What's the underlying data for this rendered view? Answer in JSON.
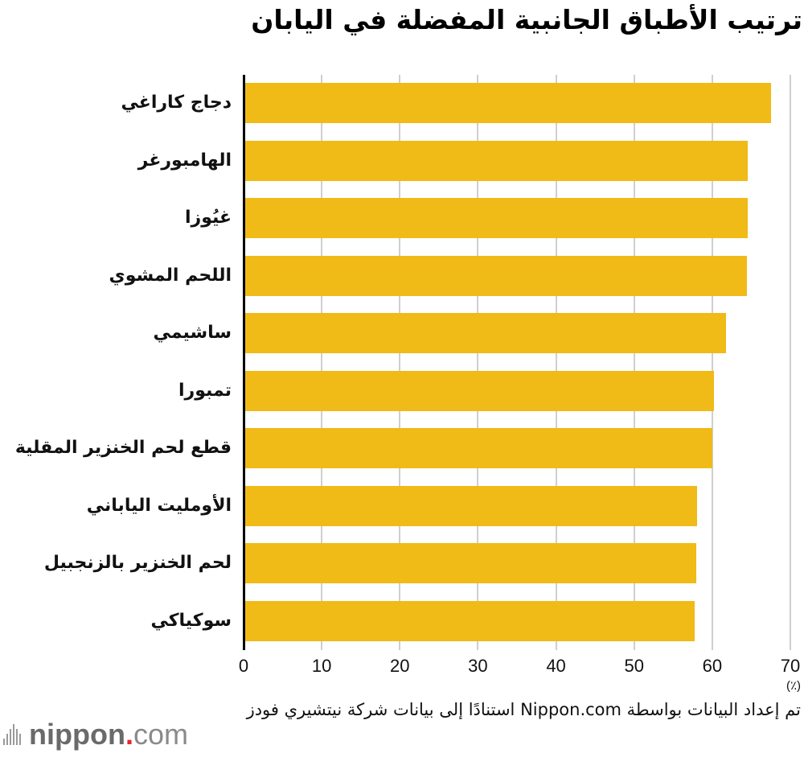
{
  "title": "ترتيب الأطباق الجانبية المفضلة في اليابان",
  "chart_data": {
    "type": "bar",
    "orientation": "horizontal",
    "title": "ترتيب الأطباق الجانبية المفضلة في اليابان",
    "categories": [
      "دجاج كاراغي",
      "الهامبورغر",
      "غيُوزا",
      "اللحم المشوي",
      "ساشيمي",
      "تمبورا",
      "قطع لحم الخنزير المقلية",
      "الأومليت الياباني",
      "لحم الخنزير بالزنجبيل",
      "سوكياكي"
    ],
    "values": [
      67.5,
      64.5,
      64.5,
      64.4,
      61.8,
      60.2,
      60.0,
      58.1,
      58.0,
      57.7
    ],
    "xlabel": "",
    "unit_label": "(٪)",
    "ylabel": "",
    "xlim": [
      0,
      70
    ],
    "x_ticks": [
      "0",
      "10",
      "20",
      "30",
      "40",
      "50",
      "60",
      "70"
    ],
    "grid": true,
    "legend": "none",
    "bar_color": "#f0ba17"
  },
  "source_note": "تم إعداد البيانات بواسطة Nippon.com استنادًا إلى بيانات شركة نيتشيري فودز",
  "logo": {
    "name": "nippon",
    "dot": ".",
    "suffix": "com",
    "accent_color": "#e5262a"
  }
}
